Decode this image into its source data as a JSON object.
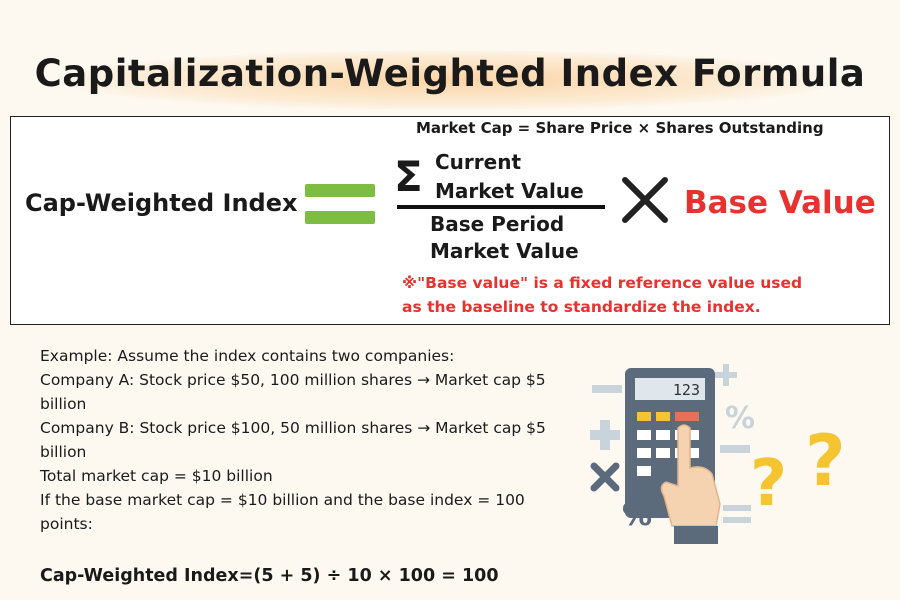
{
  "title": "Capitalization-Weighted Index Formula",
  "formula": {
    "top_note": "Market Cap = Share Price × Shares Outstanding",
    "left_label": "Cap-Weighted Index",
    "sigma": "Σ",
    "numerator": [
      "Current",
      "Market Value"
    ],
    "denominator": [
      "Base Period",
      "Market Value"
    ],
    "base_value": "Base Value",
    "note": [
      "※\"Base value\" is a fixed reference value used",
      "as the baseline to standardize the index."
    ]
  },
  "example": {
    "lines": [
      "Example: Assume the index contains two companies:",
      "Company A: Stock price $50, 100 million shares → Market cap $5 billion",
      "Company B: Stock price $100, 50 million shares → Market cap $5 billion",
      "Total market cap = $10 billion",
      "If the base market cap = $10 billion and the base index = 100 points:"
    ],
    "result": "Cap-Weighted Index=(5 + 5) ÷ 10 × 100 = 100"
  },
  "illustration": {
    "display": "123",
    "percent": "%",
    "question": "?"
  }
}
